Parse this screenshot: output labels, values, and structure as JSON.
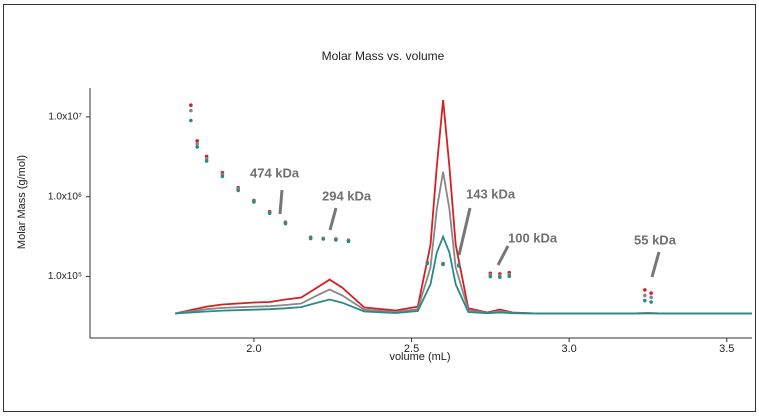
{
  "chart_data": {
    "type": "line",
    "title": "Molar Mass vs. volume",
    "xlabel": "volume (mL)",
    "ylabel": "Molar Mass (g/mol)",
    "log_y": true,
    "xlim": [
      1.48,
      3.58
    ],
    "xticks": [
      {
        "value": 2,
        "label": "2.0"
      },
      2.5,
      {
        "value": 3,
        "label": "3.0"
      },
      3.5
    ],
    "ylim": [
      17000,
      23000000
    ],
    "yticks": [
      {
        "value": 100000,
        "label": "1.0x10⁵"
      },
      {
        "value": 1000000,
        "label": "1.0x10⁶"
      },
      {
        "value": 10000000,
        "label": "1.0x10⁷"
      }
    ],
    "x": [
      1.75,
      1.85,
      1.9,
      2.0,
      2.05,
      2.1,
      2.15,
      2.2,
      2.24,
      2.28,
      2.35,
      2.45,
      2.52,
      2.56,
      2.58,
      2.6,
      2.62,
      2.64,
      2.68,
      2.74,
      2.78,
      2.82,
      2.9,
      3.2,
      3.25,
      3.3,
      3.58
    ],
    "series": [
      {
        "color": "#d42020",
        "values": [
          34500,
          42000,
          44700,
          47300,
          48000,
          51600,
          54600,
          72800,
          91700,
          72800,
          41000,
          37600,
          42000,
          250000,
          2400000,
          16300000,
          2400000,
          250000,
          40000,
          35500,
          38700,
          35500,
          34500,
          34500,
          35000,
          34500,
          34500
        ]
      },
      {
        "color": "#888888",
        "values": [
          34500,
          39000,
          40500,
          42000,
          42500,
          44000,
          46000,
          58000,
          68800,
          58000,
          38500,
          36000,
          39000,
          130000,
          700000,
          2050000,
          700000,
          130000,
          38000,
          35000,
          37000,
          35000,
          34500,
          34500,
          34800,
          34500,
          34500
        ]
      },
      {
        "color": "#2a8a86",
        "values": [
          34500,
          36500,
          37500,
          38500,
          39000,
          40000,
          41500,
          47000,
          51600,
          47000,
          36500,
          35000,
          37000,
          80000,
          200000,
          316000,
          200000,
          80000,
          36000,
          34800,
          35500,
          34800,
          34500,
          34500,
          34600,
          34500,
          34500
        ]
      }
    ],
    "mass_x": [
      1.8,
      1.82,
      1.85,
      1.9,
      1.95,
      2.0,
      2.05,
      2.1,
      2.18,
      2.22,
      2.26,
      2.3,
      2.55,
      2.6,
      2.65,
      2.75,
      2.78,
      2.81,
      3.24,
      3.26
    ],
    "mass_series": [
      {
        "color": "#d42020",
        "values": [
          14000000,
          5000000,
          3200000,
          2000000,
          1300000,
          900000,
          650000,
          480000,
          310000,
          300000,
          295000,
          285000,
          150000,
          145000,
          140000,
          110000,
          108000,
          112000,
          68000,
          62000
        ]
      },
      {
        "color": "#888888",
        "values": [
          12000000,
          4600000,
          3000000,
          1900000,
          1250000,
          880000,
          630000,
          470000,
          305000,
          298000,
          290000,
          280000,
          148000,
          143000,
          138000,
          105000,
          103000,
          106000,
          58000,
          55000
        ]
      },
      {
        "color": "#2a8a86",
        "values": [
          9000000,
          4200000,
          2800000,
          1800000,
          1200000,
          860000,
          620000,
          460000,
          300000,
          295000,
          288000,
          276000,
          146000,
          142000,
          136000,
          100000,
          98000,
          101000,
          50000,
          48000
        ]
      }
    ],
    "annotations": [
      "474 kDa",
      "294 kDa",
      "143 kDa",
      "100 kDa",
      "55 kDa"
    ]
  }
}
